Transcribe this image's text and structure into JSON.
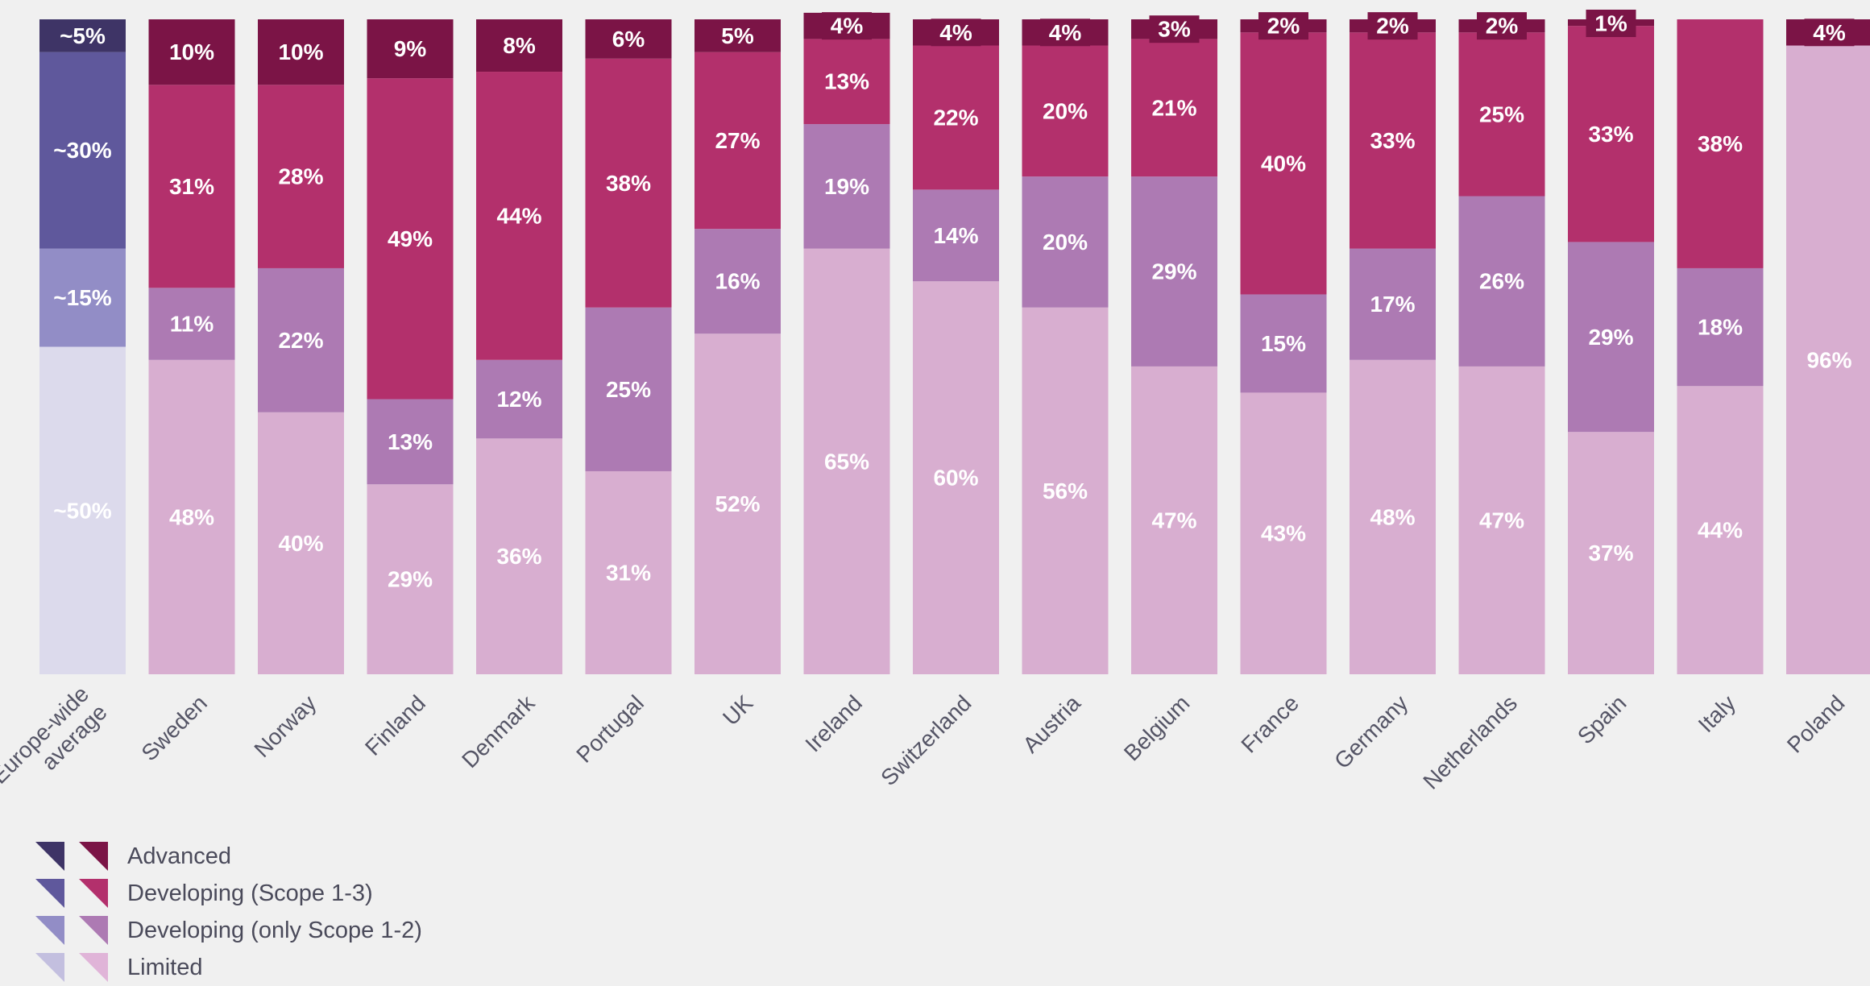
{
  "chart_data": {
    "type": "bar",
    "stacked": true,
    "normalized_percent": true,
    "categories": [
      "Europe-wide average",
      "Sweden",
      "Norway",
      "Finland",
      "Denmark",
      "Portugal",
      "UK",
      "Ireland",
      "Switzerland",
      "Austria",
      "Belgium",
      "France",
      "Germany",
      "Netherlands",
      "Spain",
      "Italy",
      "Poland"
    ],
    "category_labels": [
      [
        "Europe-wide",
        "average"
      ],
      [
        "Sweden"
      ],
      [
        "Norway"
      ],
      [
        "Finland"
      ],
      [
        "Denmark"
      ],
      [
        "Portugal"
      ],
      [
        "UK"
      ],
      [
        "Ireland"
      ],
      [
        "Switzerland"
      ],
      [
        "Austria"
      ],
      [
        "Belgium"
      ],
      [
        "France"
      ],
      [
        "Germany"
      ],
      [
        "Netherlands"
      ],
      [
        "Spain"
      ],
      [
        "Italy"
      ],
      [
        "Poland"
      ]
    ],
    "series": [
      {
        "name": "Limited",
        "values": [
          50,
          48,
          40,
          29,
          36,
          31,
          52,
          65,
          60,
          56,
          47,
          43,
          48,
          47,
          37,
          44,
          96
        ],
        "labels": [
          "~50%",
          "48%",
          "40%",
          "29%",
          "36%",
          "31%",
          "52%",
          "65%",
          "60%",
          "56%",
          "47%",
          "43%",
          "48%",
          "47%",
          "37%",
          "44%",
          "96%"
        ]
      },
      {
        "name": "Developing (only Scope 1-2)",
        "values": [
          15,
          11,
          22,
          13,
          12,
          25,
          16,
          19,
          14,
          20,
          29,
          15,
          17,
          26,
          29,
          18,
          0
        ],
        "labels": [
          "~15%",
          "11%",
          "22%",
          "13%",
          "12%",
          "25%",
          "16%",
          "19%",
          "14%",
          "20%",
          "29%",
          "15%",
          "17%",
          "26%",
          "29%",
          "18%",
          ""
        ]
      },
      {
        "name": "Developing (Scope 1-3)",
        "values": [
          30,
          31,
          28,
          49,
          44,
          38,
          27,
          13,
          22,
          20,
          21,
          40,
          33,
          25,
          33,
          38,
          0
        ],
        "labels": [
          "~30%",
          "31%",
          "28%",
          "49%",
          "44%",
          "38%",
          "27%",
          "13%",
          "22%",
          "20%",
          "21%",
          "40%",
          "33%",
          "25%",
          "33%",
          "38%",
          ""
        ]
      },
      {
        "name": "Advanced",
        "values": [
          5,
          10,
          10,
          9,
          8,
          6,
          5,
          4,
          4,
          4,
          3,
          2,
          2,
          2,
          1,
          0,
          4
        ],
        "labels": [
          "~5%",
          "10%",
          "10%",
          "9%",
          "8%",
          "6%",
          "5%",
          "4%",
          "4%",
          "4%",
          "3%",
          "2%",
          "2%",
          "2%",
          "1%",
          "",
          "4%"
        ]
      }
    ],
    "legend": [
      {
        "name": "Advanced"
      },
      {
        "name": "Developing (Scope 1-3)"
      },
      {
        "name": "Developing (only Scope 1-2)"
      },
      {
        "name": "Limited"
      }
    ],
    "colors": {
      "average": {
        "Advanced": "#3e3466",
        "Developing (Scope 1-3)": "#5f589c",
        "Developing (only Scope 1-2)": "#928dc6",
        "Limited": "#dcdaec"
      },
      "countries": {
        "Advanced": "#7b1446",
        "Developing (Scope 1-3)": "#b3306c",
        "Developing (only Scope 1-2)": "#ad7ab3",
        "Limited": "#d8aed0"
      },
      "legend_average": [
        "#3e3466",
        "#5f589c",
        "#928dc6",
        "#c3bfdf"
      ],
      "legend_countries": [
        "#7b1446",
        "#b3306c",
        "#ad7ab3",
        "#e0b4d8"
      ]
    },
    "ylim": [
      0,
      100
    ],
    "grid": false,
    "legend_position": "bottom-left",
    "title": "",
    "xlabel": "",
    "ylabel": ""
  }
}
